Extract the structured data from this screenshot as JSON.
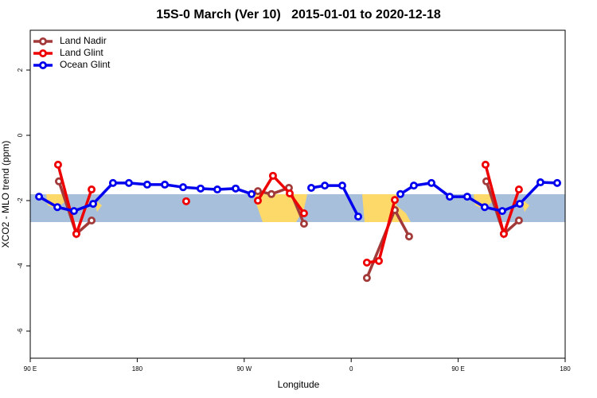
{
  "chart_data": {
    "type": "line",
    "title": "15S-0 March (Ver 10)   2015-01-01 to 2020-12-18",
    "x_label": "Longitude",
    "y_label": "XCO2 - MLO trend (ppm)",
    "xlim": [
      90,
      540
    ],
    "xticks": [
      {
        "value": 90,
        "label": "90 E"
      },
      {
        "value": 180,
        "label": "180"
      },
      {
        "value": 270,
        "label": "90 W"
      },
      {
        "value": 360,
        "label": "0"
      },
      {
        "value": 450,
        "label": "90 E"
      },
      {
        "value": 540,
        "label": "180"
      }
    ],
    "ylim": [
      -6.83,
      3.22
    ],
    "yticks": [
      2,
      0,
      -2,
      -4,
      -6
    ],
    "legend": "top-left",
    "series": [
      {
        "name": "Land Nadir",
        "color": "#a33a3a",
        "x": [
          114.1,
          128.8,
          141.6,
          200,
          281.5,
          292.9,
          307.6,
          320.3,
          340,
          373.2,
          396.7,
          408.7,
          440,
          473.7,
          488.4,
          501.1
        ],
        "values": [
          -1.41,
          -3.02,
          -2.61,
          null,
          -1.71,
          -1.8,
          -1.61,
          -2.71,
          null,
          -4.37,
          -2.29,
          -3.1,
          null,
          -1.41,
          -3.02,
          -2.61
        ]
      },
      {
        "name": "Land Glint",
        "color": "#ee0000",
        "x": [
          113.4,
          128.8,
          141.6,
          180,
          221.2,
          250,
          281.5,
          294.2,
          308.3,
          320.3,
          340,
          373.2,
          383.3,
          396.7,
          440,
          473.0,
          488.4,
          501.1
        ],
        "values": [
          -0.9,
          -3.02,
          -1.66,
          null,
          -2.02,
          null,
          -2.0,
          -1.24,
          -1.78,
          -2.39,
          null,
          -3.9,
          -3.85,
          -1.98,
          null,
          -0.9,
          -3.02,
          -1.66
        ]
      },
      {
        "name": "Ocean Glint",
        "color": "#0000ee",
        "x": [
          97.4,
          112.8,
          126.8,
          142.9,
          159.6,
          173.0,
          188.4,
          203.2,
          218.6,
          233.3,
          247.4,
          262.8,
          276.2,
          300,
          326.4,
          337.8,
          352.5,
          365.9,
          380,
          401.4,
          412.7,
          427.5,
          442.9,
          457.6,
          472.3,
          487.1,
          501.8,
          519.2,
          533.3
        ],
        "values": [
          -1.88,
          -2.2,
          -2.32,
          -2.1,
          -1.46,
          -1.46,
          -1.51,
          -1.51,
          -1.59,
          -1.63,
          -1.66,
          -1.63,
          -1.8,
          null,
          -1.61,
          -1.54,
          -1.54,
          -2.49,
          null,
          -1.8,
          -1.54,
          -1.46,
          -1.88,
          -1.88,
          -2.2,
          -2.32,
          -2.1,
          -1.44,
          -1.46
        ]
      }
    ]
  }
}
